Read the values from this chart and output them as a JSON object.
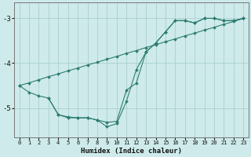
{
  "xlabel": "Humidex (Indice chaleur)",
  "bg_color": "#ceeaea",
  "line_color": "#2e7d72",
  "grid_color": "#a8d0ce",
  "xlim": [
    -0.5,
    23.5
  ],
  "ylim": [
    -5.65,
    -2.65
  ],
  "yticks": [
    -5,
    -4,
    -3
  ],
  "xticks": [
    0,
    1,
    2,
    3,
    4,
    5,
    6,
    7,
    8,
    9,
    10,
    11,
    12,
    13,
    14,
    15,
    16,
    17,
    18,
    19,
    20,
    21,
    22,
    23
  ],
  "series": [
    {
      "x": [
        0,
        1,
        2,
        3,
        4,
        5,
        6,
        7,
        8,
        9,
        10,
        11,
        12,
        13,
        14,
        15,
        16,
        17,
        18,
        19,
        20,
        21,
        22,
        23
      ],
      "y": [
        -4.5,
        -4.44,
        -4.37,
        -4.3,
        -4.24,
        -4.17,
        -4.11,
        -4.04,
        -3.98,
        -3.91,
        -3.85,
        -3.78,
        -3.72,
        -3.65,
        -3.59,
        -3.52,
        -3.46,
        -3.39,
        -3.33,
        -3.26,
        -3.2,
        -3.13,
        -3.07,
        -3.0
      ]
    },
    {
      "x": [
        0,
        1,
        2,
        3,
        4,
        5,
        6,
        7,
        8,
        9,
        10,
        11,
        12,
        13,
        14,
        15,
        16,
        17,
        18,
        19,
        20,
        21,
        22,
        23
      ],
      "y": [
        -4.5,
        -4.65,
        -4.73,
        -4.78,
        -5.15,
        -5.2,
        -5.22,
        -5.22,
        -5.27,
        -5.32,
        -5.3,
        -4.6,
        -4.45,
        -3.75,
        -3.55,
        -3.3,
        -3.05,
        -3.05,
        -3.1,
        -3.0,
        -3.0,
        -3.05,
        -3.05,
        -3.0
      ]
    },
    {
      "x": [
        3,
        4,
        5,
        6,
        7,
        8,
        9,
        10,
        11,
        12,
        13,
        14,
        15,
        16,
        17,
        18,
        19,
        20,
        21,
        22,
        23
      ],
      "y": [
        -4.78,
        -5.15,
        -5.22,
        -5.22,
        -5.22,
        -5.27,
        -5.42,
        -5.35,
        -4.85,
        -4.15,
        -3.75,
        -3.55,
        -3.3,
        -3.05,
        -3.05,
        -3.1,
        -3.0,
        -3.0,
        -3.05,
        -3.05,
        -3.0
      ]
    }
  ]
}
